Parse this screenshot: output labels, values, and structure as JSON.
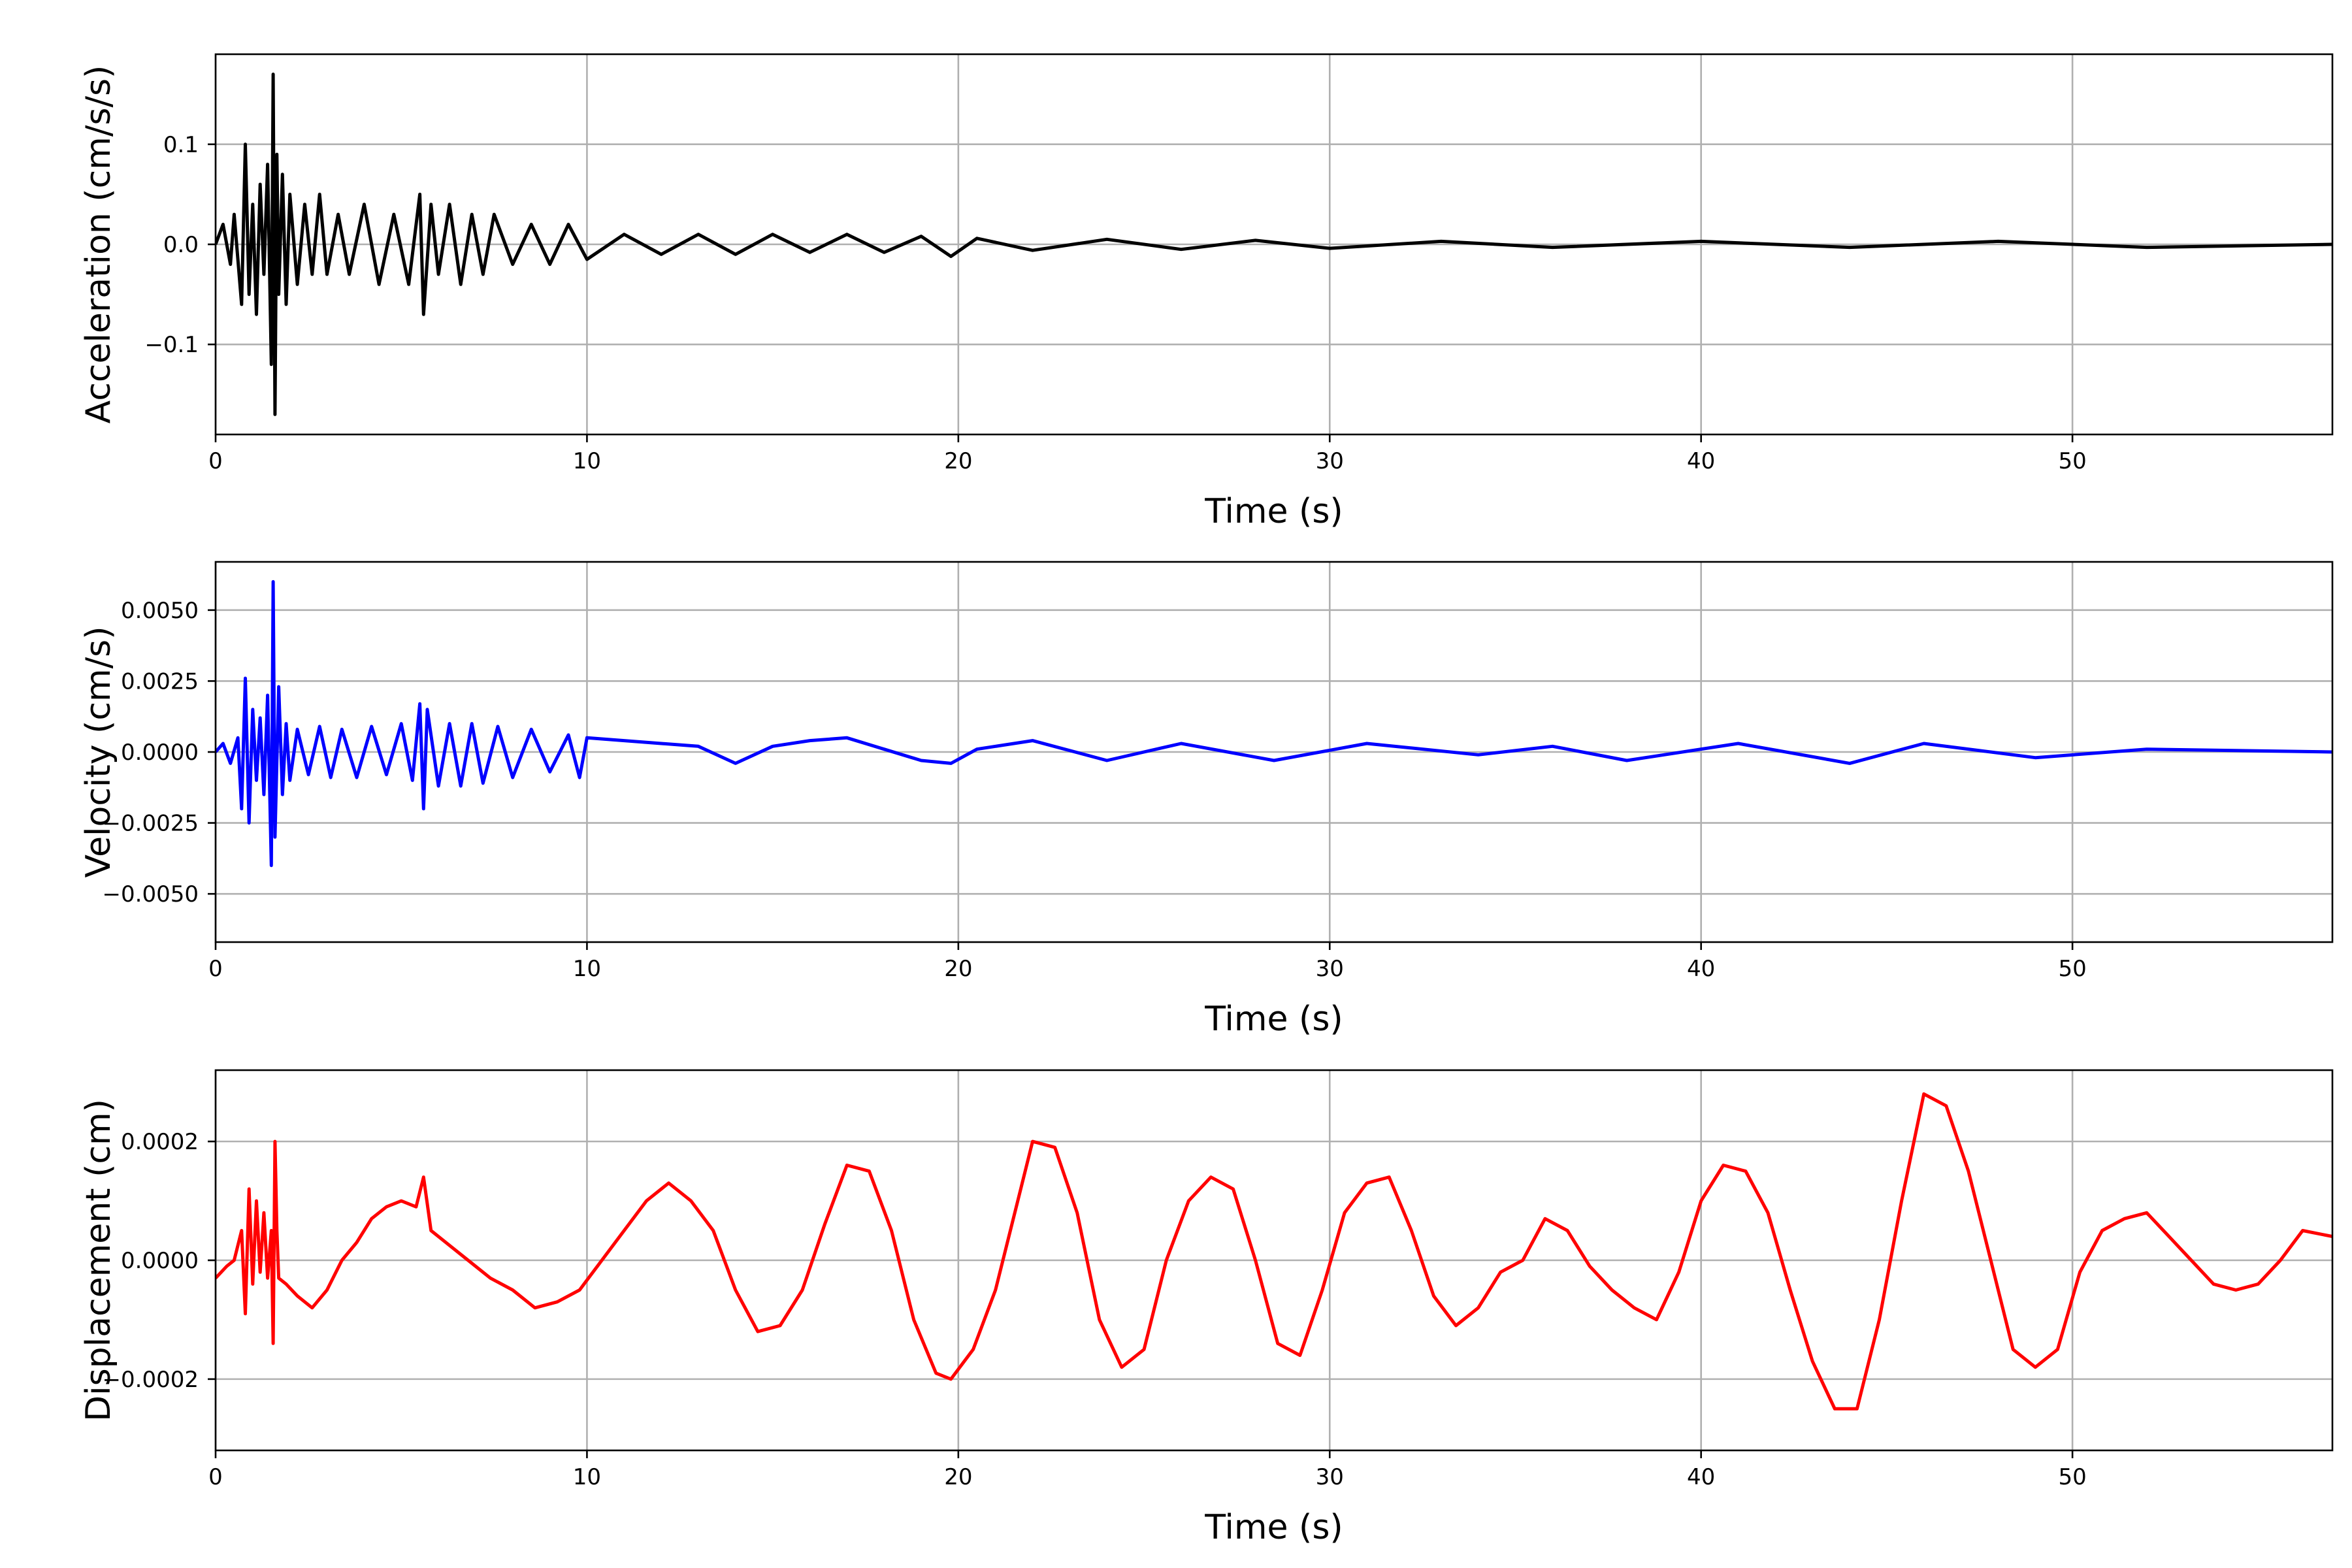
{
  "chart_data": [
    {
      "type": "line",
      "title": "",
      "xlabel": "Time (s)",
      "ylabel": "Acceleration (cm/s/s)",
      "xlim": [
        0,
        57
      ],
      "ylim": [
        -0.19,
        0.19
      ],
      "xticks": [
        0,
        10,
        20,
        30,
        40,
        50
      ],
      "xtick_labels": [
        "0",
        "10",
        "20",
        "30",
        "40",
        "50"
      ],
      "yticks": [
        -0.1,
        0.0,
        0.1
      ],
      "ytick_labels": [
        "−0.1",
        "0.0",
        "0.1"
      ],
      "grid": true,
      "legend": "none",
      "series": [
        {
          "color": "#000000",
          "x": [
            0,
            0.2,
            0.4,
            0.5,
            0.7,
            0.8,
            0.9,
            1.0,
            1.1,
            1.2,
            1.3,
            1.4,
            1.5,
            1.55,
            1.6,
            1.65,
            1.7,
            1.8,
            1.9,
            2.0,
            2.2,
            2.4,
            2.6,
            2.8,
            3.0,
            3.3,
            3.6,
            4.0,
            4.4,
            4.8,
            5.2,
            5.5,
            5.6,
            5.8,
            6.0,
            6.3,
            6.6,
            6.9,
            7.2,
            7.5,
            8.0,
            8.5,
            9.0,
            9.5,
            10.0,
            11.0,
            12.0,
            13.0,
            14.0,
            15.0,
            16.0,
            17.0,
            18.0,
            19.0,
            19.8,
            20.5,
            22.0,
            24.0,
            26.0,
            28.0,
            30.0,
            33.0,
            36.0,
            40.0,
            44.0,
            48.0,
            52.0,
            57.0
          ],
          "y": [
            0.0,
            0.02,
            -0.02,
            0.03,
            -0.06,
            0.1,
            -0.05,
            0.04,
            -0.07,
            0.06,
            -0.03,
            0.08,
            -0.12,
            0.17,
            -0.17,
            0.09,
            -0.05,
            0.07,
            -0.06,
            0.05,
            -0.04,
            0.04,
            -0.03,
            0.05,
            -0.03,
            0.03,
            -0.03,
            0.04,
            -0.04,
            0.03,
            -0.04,
            0.05,
            -0.07,
            0.04,
            -0.03,
            0.04,
            -0.04,
            0.03,
            -0.03,
            0.03,
            -0.02,
            0.02,
            -0.02,
            0.02,
            -0.015,
            0.01,
            -0.01,
            0.01,
            -0.01,
            0.01,
            -0.008,
            0.01,
            -0.008,
            0.008,
            -0.012,
            0.006,
            -0.006,
            0.005,
            -0.005,
            0.004,
            -0.004,
            0.003,
            -0.003,
            0.003,
            -0.003,
            0.003,
            -0.003,
            0.0
          ]
        }
      ]
    },
    {
      "type": "line",
      "title": "",
      "xlabel": "Time (s)",
      "ylabel": "Velocity (cm/s)",
      "xlim": [
        0,
        57
      ],
      "ylim": [
        -0.0067,
        0.0067
      ],
      "xticks": [
        0,
        10,
        20,
        30,
        40,
        50
      ],
      "xtick_labels": [
        "0",
        "10",
        "20",
        "30",
        "40",
        "50"
      ],
      "yticks": [
        -0.005,
        -0.0025,
        0.0,
        0.0025,
        0.005
      ],
      "ytick_labels": [
        "−0.0050",
        "−0.0025",
        "0.0000",
        "0.0025",
        "0.0050"
      ],
      "grid": true,
      "legend": "none",
      "series": [
        {
          "color": "#0000ff",
          "x": [
            0,
            0.2,
            0.4,
            0.6,
            0.7,
            0.8,
            0.9,
            1.0,
            1.1,
            1.2,
            1.3,
            1.4,
            1.5,
            1.55,
            1.6,
            1.7,
            1.8,
            1.9,
            2.0,
            2.2,
            2.5,
            2.8,
            3.1,
            3.4,
            3.8,
            4.2,
            4.6,
            5.0,
            5.3,
            5.5,
            5.6,
            5.7,
            6.0,
            6.3,
            6.6,
            6.9,
            7.2,
            7.6,
            8.0,
            8.5,
            9.0,
            9.5,
            9.8,
            10.0,
            11.0,
            12.0,
            13.0,
            14.0,
            15.0,
            16.0,
            17.0,
            18.0,
            19.0,
            19.8,
            20.5,
            22.0,
            24.0,
            26.0,
            28.5,
            31.0,
            34.0,
            36.0,
            38.0,
            41.0,
            44.0,
            46.0,
            49.0,
            52.0,
            57.0
          ],
          "y": [
            0.0,
            0.0003,
            -0.0004,
            0.0005,
            -0.002,
            0.0026,
            -0.0025,
            0.0015,
            -0.001,
            0.0012,
            -0.0015,
            0.002,
            -0.004,
            0.006,
            -0.003,
            0.0023,
            -0.0015,
            0.001,
            -0.001,
            0.0008,
            -0.0008,
            0.0009,
            -0.0009,
            0.0008,
            -0.0009,
            0.0009,
            -0.0008,
            0.001,
            -0.001,
            0.0017,
            -0.002,
            0.0015,
            -0.0012,
            0.001,
            -0.0012,
            0.001,
            -0.0011,
            0.0009,
            -0.0009,
            0.0008,
            -0.0007,
            0.0006,
            -0.0009,
            0.0005,
            0.0004,
            0.0003,
            0.0002,
            -0.0004,
            0.0002,
            0.0004,
            0.0005,
            0.0001,
            -0.0003,
            -0.0004,
            0.0001,
            0.0004,
            -0.0003,
            0.0003,
            -0.0003,
            0.0003,
            -0.0001,
            0.0002,
            -0.0003,
            0.0003,
            -0.0004,
            0.0003,
            -0.0002,
            0.0001,
            0.0
          ]
        }
      ]
    },
    {
      "type": "line",
      "title": "",
      "xlabel": "Time (s)",
      "ylabel": "Displacement (cm)",
      "xlim": [
        0,
        57
      ],
      "ylim": [
        -0.00032,
        0.00032
      ],
      "xticks": [
        0,
        10,
        20,
        30,
        40,
        50
      ],
      "xtick_labels": [
        "0",
        "10",
        "20",
        "30",
        "40",
        "50"
      ],
      "yticks": [
        -0.0002,
        0.0,
        0.0002
      ],
      "ytick_labels": [
        "−0.0002",
        "0.0000",
        "0.0002"
      ],
      "grid": true,
      "legend": "none",
      "series": [
        {
          "color": "#ff0000",
          "x": [
            0,
            0.3,
            0.5,
            0.7,
            0.8,
            0.9,
            1.0,
            1.1,
            1.2,
            1.3,
            1.4,
            1.5,
            1.55,
            1.6,
            1.65,
            1.7,
            1.9,
            2.2,
            2.6,
            3.0,
            3.4,
            3.8,
            4.2,
            4.6,
            5.0,
            5.4,
            5.6,
            5.8,
            6.2,
            6.8,
            7.4,
            8.0,
            8.6,
            9.2,
            9.8,
            10.4,
            11.0,
            11.6,
            12.2,
            12.8,
            13.4,
            14.0,
            14.6,
            15.2,
            15.8,
            16.4,
            17.0,
            17.6,
            18.2,
            18.8,
            19.4,
            19.8,
            20.4,
            21.0,
            21.6,
            22.0,
            22.6,
            23.2,
            23.8,
            24.4,
            25.0,
            25.6,
            26.2,
            26.8,
            27.4,
            28.0,
            28.6,
            29.2,
            29.8,
            30.4,
            31.0,
            31.6,
            32.2,
            32.8,
            33.4,
            34.0,
            34.6,
            35.2,
            35.8,
            36.4,
            37.0,
            37.6,
            38.2,
            38.8,
            39.4,
            40.0,
            40.6,
            41.2,
            41.8,
            42.4,
            43.0,
            43.6,
            44.2,
            44.8,
            45.4,
            46.0,
            46.6,
            47.2,
            47.8,
            48.4,
            49.0,
            49.6,
            50.2,
            50.8,
            51.4,
            52.0,
            52.6,
            53.2,
            53.8,
            54.4,
            55.0,
            55.6,
            56.2,
            57.0
          ],
          "y": [
            -3e-05,
            -1e-05,
            0.0,
            5e-05,
            -9e-05,
            0.00012,
            -4e-05,
            0.0001,
            -2e-05,
            8e-05,
            -3e-05,
            5e-05,
            -0.00014,
            0.0002,
            5e-05,
            -3e-05,
            -4e-05,
            -6e-05,
            -8e-05,
            -5e-05,
            0.0,
            3e-05,
            7e-05,
            9e-05,
            0.0001,
            9e-05,
            0.00014,
            5e-05,
            3e-05,
            0.0,
            -3e-05,
            -5e-05,
            -8e-05,
            -7e-05,
            -5e-05,
            0.0,
            5e-05,
            0.0001,
            0.00013,
            0.0001,
            5e-05,
            -5e-05,
            -0.00012,
            -0.00011,
            -5e-05,
            6e-05,
            0.00016,
            0.00015,
            5e-05,
            -0.0001,
            -0.00019,
            -0.0002,
            -0.00015,
            -5e-05,
            0.0001,
            0.0002,
            0.00019,
            8e-05,
            -0.0001,
            -0.00018,
            -0.00015,
            0.0,
            0.0001,
            0.00014,
            0.00012,
            0.0,
            -0.00014,
            -0.00016,
            -5e-05,
            8e-05,
            0.00013,
            0.00014,
            5e-05,
            -6e-05,
            -0.00011,
            -8e-05,
            -2e-05,
            0.0,
            7e-05,
            5e-05,
            -1e-05,
            -5e-05,
            -8e-05,
            -0.0001,
            -2e-05,
            0.0001,
            0.00016,
            0.00015,
            8e-05,
            -5e-05,
            -0.00017,
            -0.00025,
            -0.00025,
            -0.0001,
            0.0001,
            0.00028,
            0.00026,
            0.00015,
            0.0,
            -0.00015,
            -0.00018,
            -0.00015,
            -2e-05,
            5e-05,
            7e-05,
            8e-05,
            4e-05,
            0.0,
            -4e-05,
            -5e-05,
            -4e-05,
            0.0,
            5e-05,
            4e-05
          ]
        }
      ]
    }
  ]
}
